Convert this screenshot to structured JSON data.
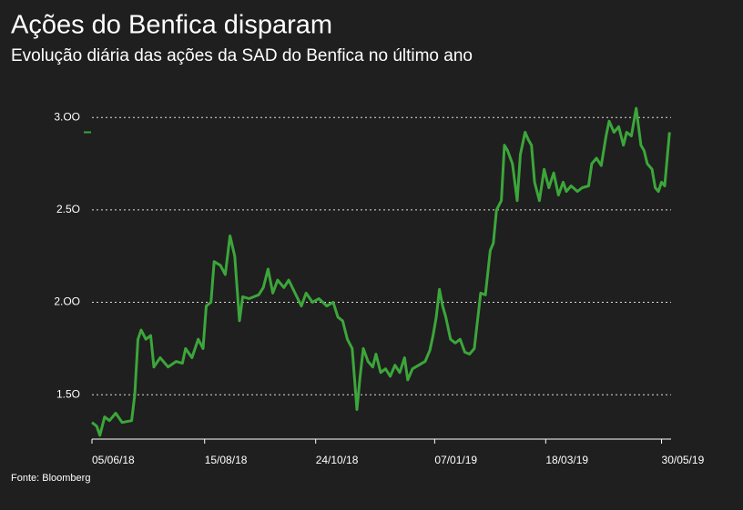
{
  "chart_data": {
    "type": "line",
    "title": "Ações do Benfica disparam",
    "subtitle": "Evolução diária das ações da SAD do Benfica no último ano",
    "source": "Fonte: Bloomberg",
    "color": "#3ca63a",
    "grid": true,
    "ylim": [
      1.26,
      3.07
    ],
    "yticks": [
      {
        "value": 1.5,
        "label": "1.5O"
      },
      {
        "value": 2,
        "label": "2.OO"
      },
      {
        "value": 2.5,
        "label": "2.5O"
      },
      {
        "value": 3,
        "label": "3.OO"
      }
    ],
    "xlim": [
      "05/06/18",
      "05/06/19"
    ],
    "xticks": [
      "05/06/18",
      "15/08/18",
      "24/10/18",
      "07/01/19",
      "18/03/19",
      "30/05/19"
    ],
    "x": [
      "05/06/18",
      "08/06/18",
      "10/06/18",
      "13/06/18",
      "16/06/18",
      "20/06/18",
      "24/06/18",
      "30/06/18",
      "02/07/18",
      "04/07/18",
      "06/07/18",
      "09/07/18",
      "12/07/18",
      "14/07/18",
      "18/07/18",
      "23/07/18",
      "28/07/18",
      "01/08/18",
      "03/08/18",
      "07/08/18",
      "11/08/18",
      "14/08/18",
      "16/08/18",
      "19/08/18",
      "21/08/18",
      "25/08/18",
      "28/08/18",
      "31/08/18",
      "03/09/18",
      "06/09/18",
      "08/09/18",
      "12/09/18",
      "18/09/18",
      "21/09/18",
      "24/09/18",
      "27/09/18",
      "30/09/18",
      "04/10/18",
      "07/10/18",
      "11/10/18",
      "15/10/18",
      "18/10/18",
      "22/10/18",
      "26/10/18",
      "31/10/18",
      "04/11/18",
      "07/11/18",
      "10/11/18",
      "13/11/18",
      "16/11/18",
      "19/11/18",
      "21/11/18",
      "23/11/18",
      "26/11/18",
      "29/11/18",
      "01/12/18",
      "04/12/18",
      "07/12/18",
      "10/12/18",
      "13/12/18",
      "16/12/18",
      "19/12/18",
      "21/12/18",
      "24/12/18",
      "28/12/18",
      "01/01/19",
      "04/01/19",
      "06/01/19",
      "08/01/19",
      "10/01/19",
      "12/01/19",
      "14/01/19",
      "17/01/19",
      "20/01/19",
      "23/01/19",
      "26/01/19",
      "29/01/19",
      "01/02/19",
      "03/02/19",
      "05/02/19",
      "08/02/19",
      "11/02/19",
      "13/02/19",
      "15/02/19",
      "18/02/19",
      "20/02/19",
      "22/02/19",
      "25/02/19",
      "28/02/19",
      "02/03/19",
      "05/03/19",
      "07/03/19",
      "09/03/19",
      "11/03/19",
      "14/03/19",
      "17/03/19",
      "20/03/19",
      "23/03/19",
      "26/03/19",
      "29/03/19",
      "31/03/19",
      "03/04/19",
      "07/04/19",
      "10/04/19",
      "14/04/19",
      "16/04/19",
      "19/04/19",
      "22/04/19",
      "25/04/19",
      "27/04/19",
      "30/04/19",
      "03/05/19",
      "06/05/19",
      "08/05/19",
      "11/05/19",
      "14/05/19",
      "17/05/19",
      "19/05/19",
      "21/05/19",
      "24/05/19",
      "26/05/19",
      "28/05/19",
      "30/05/19",
      "01/06/19",
      "04/06/19"
    ],
    "values": [
      1.35,
      1.33,
      1.28,
      1.38,
      1.36,
      1.4,
      1.35,
      1.36,
      1.5,
      1.8,
      1.85,
      1.8,
      1.82,
      1.65,
      1.7,
      1.65,
      1.68,
      1.67,
      1.75,
      1.7,
      1.8,
      1.75,
      1.98,
      2.0,
      2.22,
      2.2,
      2.15,
      2.36,
      2.25,
      1.9,
      2.03,
      2.02,
      2.04,
      2.08,
      2.18,
      2.05,
      2.12,
      2.08,
      2.12,
      2.05,
      1.98,
      2.05,
      2.0,
      2.02,
      1.98,
      2.0,
      1.92,
      1.9,
      1.8,
      1.75,
      1.42,
      1.6,
      1.75,
      1.68,
      1.65,
      1.72,
      1.62,
      1.64,
      1.6,
      1.66,
      1.62,
      1.7,
      1.58,
      1.64,
      1.66,
      1.68,
      1.74,
      1.82,
      1.92,
      2.07,
      1.98,
      1.92,
      1.8,
      1.78,
      1.8,
      1.73,
      1.72,
      1.75,
      1.9,
      2.05,
      2.04,
      2.28,
      2.32,
      2.5,
      2.55,
      2.85,
      2.82,
      2.75,
      2.55,
      2.8,
      2.92,
      2.88,
      2.85,
      2.65,
      2.55,
      2.72,
      2.62,
      2.7,
      2.58,
      2.65,
      2.6,
      2.63,
      2.6,
      2.62,
      2.63,
      2.75,
      2.78,
      2.74,
      2.9,
      2.98,
      2.92,
      2.95,
      2.85,
      2.92,
      2.9,
      3.05,
      2.85,
      2.82,
      2.75,
      2.72,
      2.62,
      2.6,
      2.65,
      2.63,
      2.92
    ]
  }
}
